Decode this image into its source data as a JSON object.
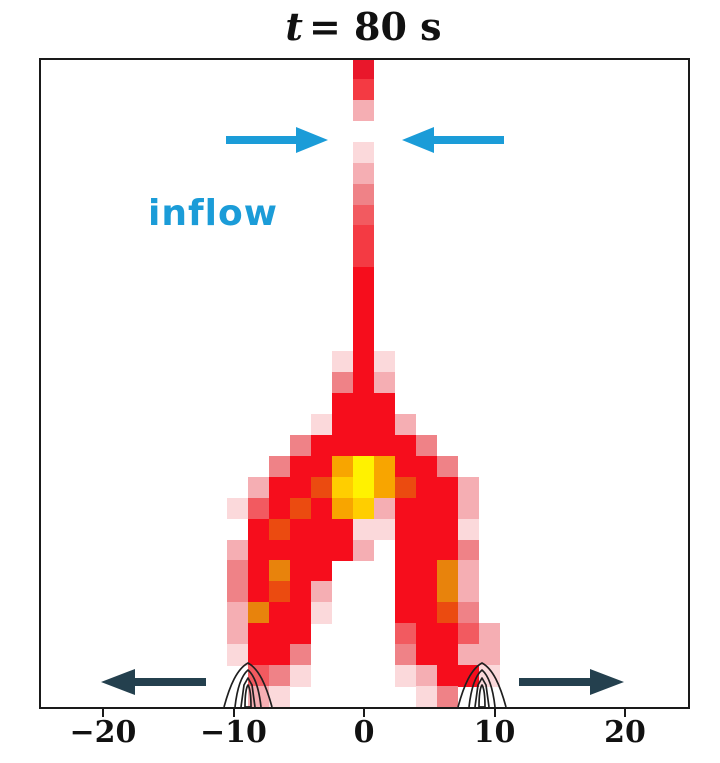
{
  "figure": {
    "title": {
      "variable": "t",
      "rest": "= 80 s",
      "full": "t = 80 s"
    },
    "background": "#ffffff",
    "frame_color": "#1a1a1a"
  },
  "annotations": {
    "inflow_label": "inflow",
    "inflow_color": "#1B9CD8",
    "inflow_arrow_color": "#1B9CD8",
    "outflow_arrow_color": "#24404E"
  },
  "chart_data": {
    "type": "heatmap",
    "title": "t = 80 s",
    "xlabel": "",
    "ylabel": "",
    "x_ticks": [
      {
        "value": -20,
        "label": "−20"
      },
      {
        "value": -10,
        "label": "−10"
      },
      {
        "value": 0,
        "label": "0"
      },
      {
        "value": 10,
        "label": "10"
      },
      {
        "value": 20,
        "label": "20"
      }
    ],
    "x_range": [
      -25,
      25
    ],
    "grid_off": true,
    "legend": "none",
    "annotations": [
      "inflow label with two converging horizontal arrows near the top jet gap",
      "two diverging dark outflow arrows at the bottom near the axis",
      "nested magnetic footpoint contours at x ≈ -9 and x ≈ +9 on the lower axis"
    ],
    "footpoint_contours_x": [
      -9,
      9
    ],
    "grid": {
      "cols": 13,
      "rows": 31,
      "x_extent_units": [
        -10.5,
        10.4
      ],
      "palette": {
        ".": "transparent",
        "a": "#FBD9DB",
        "b": "#F5AEB3",
        "c": "#EF8287",
        "d": "#F25A60",
        "s": "#F43A43",
        "r": "#F60D1C",
        "R": "#E9172B",
        "q": "#EB4B10",
        "O": "#E8830C",
        "o": "#F8A500",
        "m": "#FFCE00",
        "Y": "#FFF200"
      },
      "cells": [
        "......R......",
        "......s......",
        "......b......",
        ".............",
        "......a......",
        "......b......",
        "......c......",
        "......d......",
        "......s......",
        "......s......",
        "......r......",
        "......r......",
        "......r......",
        "......r......",
        ".....ara.....",
        ".....crb.....",
        ".....rrr.....",
        "....arrrb....",
        "...crrrrrc...",
        "..crroYorrc..",
        ".brrqmYoqrrb.",
        "adrqrombrrrb.",
        ".rqrrraarrra.",
        "brrrrrb.rrrc.",
        "crOrr...rrOb.",
        "crqrb...rrOb.",
        "bOrra...rrqc.",
        "brrr....drrdb",
        "arrc....crrbb",
        ".dca....abrra",
        ".ba......ac.."
      ]
    }
  }
}
